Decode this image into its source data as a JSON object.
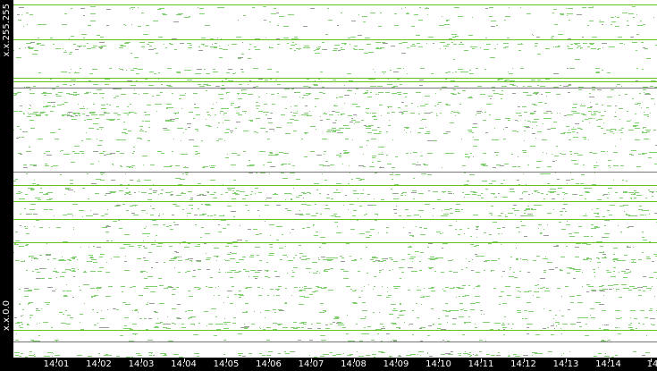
{
  "chart_data": {
    "type": "scatter",
    "title": "",
    "xlabel": "",
    "ylabel": "",
    "y_tick_labels": {
      "top": "x.x.255.255",
      "bottom": "x.x.0.0"
    },
    "x_tick_labels": [
      "14:01",
      "14:02",
      "14:03",
      "14:04",
      "14:05",
      "14:06",
      "14:07",
      "14:08",
      "14:09",
      "14:10",
      "14:11",
      "14:12",
      "14:13",
      "14:14",
      "14"
    ],
    "xlim_minutes": [
      "14:00",
      "14:15"
    ],
    "ylim_address": [
      0,
      65535
    ],
    "grid": false,
    "colors": {
      "dots": "#7fcf6f",
      "lines": "#66c21a",
      "dark_lines": "#777777",
      "axis_bg": "#000000"
    },
    "horizontal_lines": [
      {
        "y": 64650,
        "color": "#66c21a"
      },
      {
        "y": 58400,
        "color": "#66c21a"
      },
      {
        "y": 51300,
        "color": "#66c21a"
      },
      {
        "y": 50600,
        "color": "#66c21a"
      },
      {
        "y": 49400,
        "color": "#777777"
      },
      {
        "y": 34000,
        "color": "#777777"
      },
      {
        "y": 31600,
        "color": "#66c21a"
      },
      {
        "y": 28700,
        "color": "#66c21a"
      },
      {
        "y": 25400,
        "color": "#66c21a"
      },
      {
        "y": 21200,
        "color": "#66c21a"
      },
      {
        "y": 5000,
        "color": "#66c21a"
      },
      {
        "y": 2900,
        "color": "#777777"
      }
    ]
  }
}
